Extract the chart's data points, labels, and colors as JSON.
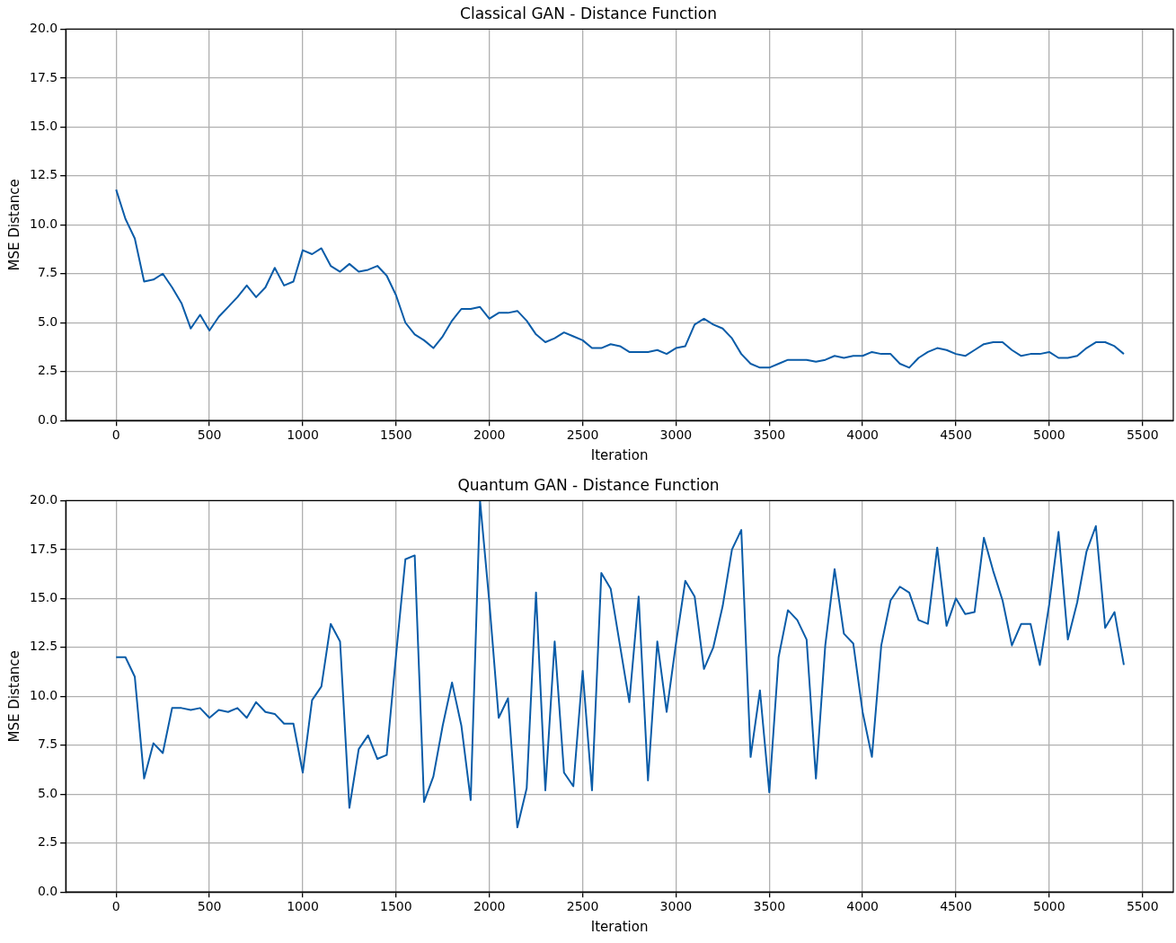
{
  "chart_data": [
    {
      "type": "line",
      "title": "Classical GAN - Distance Function",
      "xlabel": "Iteration",
      "ylabel": "MSE Distance",
      "x": [
        0,
        50,
        100,
        150,
        200,
        250,
        300,
        350,
        400,
        450,
        500,
        550,
        600,
        650,
        700,
        750,
        800,
        850,
        900,
        950,
        1000,
        1050,
        1100,
        1150,
        1200,
        1250,
        1300,
        1350,
        1400,
        1450,
        1500,
        1550,
        1600,
        1650,
        1700,
        1750,
        1800,
        1850,
        1900,
        1950,
        2000,
        2050,
        2100,
        2150,
        2200,
        2250,
        2300,
        2350,
        2400,
        2450,
        2500,
        2550,
        2600,
        2650,
        2700,
        2750,
        2800,
        2850,
        2900,
        2950,
        3000,
        3050,
        3100,
        3150,
        3200,
        3250,
        3300,
        3350,
        3400,
        3450,
        3500,
        3550,
        3600,
        3650,
        3700,
        3750,
        3800,
        3850,
        3900,
        3950,
        4000,
        4050,
        4100,
        4150,
        4200,
        4250,
        4300,
        4350,
        4400,
        4450,
        4500,
        4550,
        4600,
        4650,
        4700,
        4750,
        4800,
        4850,
        4900,
        4950,
        5000,
        5050,
        5100,
        5150,
        5200,
        5250,
        5300,
        5350,
        5400
      ],
      "values": [
        11.8,
        10.3,
        9.3,
        7.1,
        7.2,
        7.5,
        6.8,
        6.0,
        4.7,
        5.4,
        4.6,
        5.3,
        5.8,
        6.3,
        6.9,
        6.3,
        6.8,
        7.8,
        6.9,
        7.1,
        8.7,
        8.5,
        8.8,
        7.9,
        7.6,
        8.0,
        7.6,
        7.7,
        7.9,
        7.4,
        6.4,
        5.0,
        4.4,
        4.1,
        3.7,
        4.3,
        5.1,
        5.7,
        5.7,
        5.8,
        5.2,
        5.5,
        5.5,
        5.6,
        5.1,
        4.4,
        4.0,
        4.2,
        4.5,
        4.3,
        4.1,
        3.7,
        3.7,
        3.9,
        3.8,
        3.5,
        3.5,
        3.5,
        3.6,
        3.4,
        3.7,
        3.8,
        4.9,
        5.2,
        4.9,
        4.7,
        4.2,
        3.4,
        2.9,
        2.7,
        2.7,
        2.9,
        3.1,
        3.1,
        3.1,
        3.0,
        3.1,
        3.3,
        3.2,
        3.3,
        3.3,
        3.5,
        3.4,
        3.4,
        2.9,
        2.7,
        3.2,
        3.5,
        3.7,
        3.6,
        3.4,
        3.3,
        3.6,
        3.9,
        4.0,
        4.0,
        3.6,
        3.3,
        3.4,
        3.4,
        3.5,
        3.2,
        3.2,
        3.3,
        3.7,
        4.0,
        4.0,
        3.8,
        3.4
      ],
      "color": "#0a5ca8",
      "xlim": [
        -270,
        5665
      ],
      "xticks": [
        0,
        500,
        1000,
        1500,
        2000,
        2500,
        3000,
        3500,
        4000,
        4500,
        5000,
        5500
      ],
      "ylim": [
        0,
        20
      ],
      "yticks": [
        {
          "value": 0,
          "label": "0.0"
        },
        {
          "value": 2.5,
          "label": "2.5"
        },
        {
          "value": 5,
          "label": "5.0"
        },
        {
          "value": 7.5,
          "label": "7.5"
        },
        {
          "value": 10,
          "label": "10.0"
        },
        {
          "value": 12.5,
          "label": "12.5"
        },
        {
          "value": 15,
          "label": "15.0"
        },
        {
          "value": 17.5,
          "label": "17.5"
        },
        {
          "value": 20,
          "label": "20.0"
        }
      ],
      "grid": true,
      "marker": "none",
      "line_style": "solid"
    },
    {
      "type": "line",
      "title": "Quantum GAN - Distance Function",
      "xlabel": "Iteration",
      "ylabel": "MSE Distance",
      "x": [
        0,
        50,
        100,
        150,
        200,
        250,
        300,
        350,
        400,
        450,
        500,
        550,
        600,
        650,
        700,
        750,
        800,
        850,
        900,
        950,
        1000,
        1050,
        1100,
        1150,
        1200,
        1250,
        1300,
        1350,
        1400,
        1450,
        1500,
        1550,
        1600,
        1650,
        1700,
        1750,
        1800,
        1850,
        1900,
        1950,
        2000,
        2050,
        2100,
        2150,
        2200,
        2250,
        2300,
        2350,
        2400,
        2450,
        2500,
        2550,
        2600,
        2650,
        2700,
        2750,
        2800,
        2850,
        2900,
        2950,
        3000,
        3050,
        3100,
        3150,
        3200,
        3250,
        3300,
        3350,
        3400,
        3450,
        3500,
        3550,
        3600,
        3650,
        3700,
        3750,
        3800,
        3850,
        3900,
        3950,
        4000,
        4050,
        4100,
        4150,
        4200,
        4250,
        4300,
        4350,
        4400,
        4450,
        4500,
        4550,
        4600,
        4650,
        4700,
        4750,
        4800,
        4850,
        4900,
        4950,
        5000,
        5050,
        5100,
        5150,
        5200,
        5250,
        5300,
        5350,
        5400
      ],
      "values": [
        12.0,
        12.0,
        11.0,
        5.8,
        7.6,
        7.1,
        9.4,
        9.4,
        9.3,
        9.4,
        8.9,
        9.3,
        9.2,
        9.4,
        8.9,
        9.7,
        9.2,
        9.1,
        8.6,
        8.6,
        6.1,
        9.8,
        10.5,
        13.7,
        12.8,
        4.3,
        7.3,
        8.0,
        6.8,
        7.0,
        12.1,
        17.0,
        17.2,
        4.6,
        5.9,
        8.5,
        10.7,
        8.5,
        4.7,
        20.0,
        14.8,
        8.9,
        9.9,
        3.3,
        5.3,
        15.3,
        5.2,
        12.8,
        6.1,
        5.4,
        11.3,
        5.2,
        16.3,
        15.5,
        12.6,
        9.7,
        15.1,
        5.7,
        12.8,
        9.2,
        12.7,
        15.9,
        15.1,
        11.4,
        12.5,
        14.6,
        17.5,
        18.5,
        6.9,
        10.3,
        5.1,
        12.0,
        14.4,
        13.9,
        12.9,
        5.8,
        12.6,
        16.5,
        13.2,
        12.7,
        9.2,
        6.9,
        12.6,
        14.9,
        15.6,
        15.3,
        13.9,
        13.7,
        17.6,
        13.6,
        15.0,
        14.2,
        14.3,
        18.1,
        16.4,
        14.9,
        12.6,
        13.7,
        13.7,
        11.6,
        14.7,
        18.4,
        12.9,
        14.8,
        17.4,
        18.7,
        13.5,
        14.3,
        11.6
      ],
      "color": "#0a5ca8",
      "xlim": [
        -270,
        5665
      ],
      "xticks": [
        0,
        500,
        1000,
        1500,
        2000,
        2500,
        3000,
        3500,
        4000,
        4500,
        5000,
        5500
      ],
      "ylim": [
        0,
        20
      ],
      "yticks": [
        {
          "value": 0,
          "label": "0.0"
        },
        {
          "value": 2.5,
          "label": "2.5"
        },
        {
          "value": 5,
          "label": "5.0"
        },
        {
          "value": 7.5,
          "label": "7.5"
        },
        {
          "value": 10,
          "label": "10.0"
        },
        {
          "value": 12.5,
          "label": "12.5"
        },
        {
          "value": 15,
          "label": "15.0"
        },
        {
          "value": 17.5,
          "label": "17.5"
        },
        {
          "value": 20,
          "label": "20.0"
        }
      ],
      "grid": true,
      "marker": "none",
      "line_style": "solid"
    }
  ]
}
